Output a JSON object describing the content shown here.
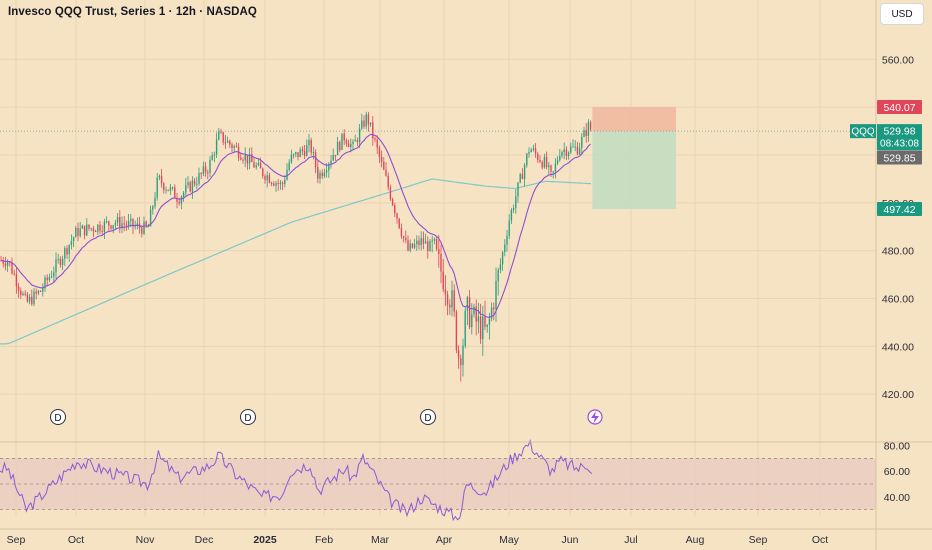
{
  "header": {
    "title": "Invesco QQQ Trust, Series 1 · 12h · NASDAQ",
    "currency": "USD"
  },
  "colors": {
    "background": "#f6e3c4",
    "candle_up": "#2e9e7e",
    "candle_down": "#e0455a",
    "ema_short": "#8e4fd0",
    "sma_long": "#7fc8c8",
    "rsi_line": "#8a5ad6",
    "rsi_band": "#e8c9c0",
    "target_box": "#c6dcc0",
    "stop_box": "#f1b9a0",
    "label_red": "#e0455a",
    "label_green": "#1a9980",
    "label_gray": "#6b6b6b"
  },
  "chart_data": {
    "type": "candlestick",
    "x_axis": {
      "ticks": [
        "Sep",
        "Oct",
        "Nov",
        "Dec",
        "2025",
        "Feb",
        "Mar",
        "Apr",
        "May",
        "Jun",
        "Jul",
        "Aug",
        "Sep",
        "Oct"
      ]
    },
    "price_axis": {
      "ticks": [
        "560.00",
        "540.00",
        "520.00",
        "500.00",
        "480.00",
        "460.00",
        "440.00",
        "420.00"
      ],
      "range": [
        400,
        572
      ]
    },
    "price_path": {
      "dates": [
        "Aug 28",
        "Sep 6",
        "Sep 13",
        "Oct 1",
        "Oct 20",
        "Nov 5",
        "Nov 10",
        "Nov 20",
        "Dec 5",
        "Dec 10",
        "Dec 18",
        "Dec 31",
        "Jan 10",
        "Jan 14",
        "Jan 24",
        "Jan 28",
        "Feb 10",
        "Feb 14",
        "Feb 19",
        "Feb 21",
        "Mar 4",
        "Mar 10",
        "Mar 13",
        "Mar 20",
        "Mar 26",
        "Apr 4",
        "Apr 7",
        "Apr 9",
        "Apr 11",
        "Apr 21",
        "May 2",
        "May 12",
        "May 20",
        "May 23",
        "May 27",
        "Jun 5",
        "Jun 10",
        "Jun 12"
      ],
      "close": [
        476,
        458,
        463,
        488,
        492,
        489,
        510,
        502,
        515,
        528,
        523,
        513,
        507,
        518,
        524,
        511,
        528,
        523,
        533,
        536,
        505,
        488,
        480,
        484,
        480,
        458,
        436,
        440,
        455,
        445,
        493,
        523,
        516,
        510,
        522,
        523,
        532,
        530
      ]
    },
    "indicators": {
      "short_ma": "purple line",
      "long_ma": "teal line",
      "sma_path": {
        "dates": [
          "Aug 28",
          "Nov 15",
          "Jan 15",
          "Mar 10",
          "Mar 25",
          "Apr 20",
          "May 5",
          "May 20",
          "Jun 12"
        ],
        "values": [
          441,
          470,
          492,
          506,
          510,
          507,
          506,
          509,
          508
        ]
      }
    },
    "position": {
      "entry": 529.98,
      "stop": 540.07,
      "target": 497.42
    },
    "price_labels": [
      {
        "text": "540.07",
        "color": "red"
      },
      {
        "text": "529.98",
        "sub": "08:43:08",
        "symbol": "QQQ",
        "color": "green"
      },
      {
        "text": "529.85",
        "color": "gray"
      },
      {
        "text": "497.42",
        "color": "green"
      }
    ],
    "dividend_markers": [
      "D",
      "D",
      "D"
    ],
    "rsi": {
      "ticks": [
        "80.00",
        "60.00",
        "40.00"
      ],
      "bands": [
        70,
        50,
        30
      ],
      "range": [
        25,
        86
      ],
      "path": {
        "dates": [
          "Aug 28",
          "Sep 6",
          "Sep 13",
          "Oct 1",
          "Oct 20",
          "Nov 5",
          "Nov 10",
          "Nov 20",
          "Dec 5",
          "Dec 10",
          "Dec 18",
          "Dec 31",
          "Jan 10",
          "Jan 14",
          "Jan 24",
          "Jan 28",
          "Feb 10",
          "Feb 14",
          "Feb 19",
          "Feb 21",
          "Mar 4",
          "Mar 10",
          "Mar 13",
          "Mar 20",
          "Mar 26",
          "Apr 4",
          "Apr 7",
          "Apr 9",
          "Apr 11",
          "Apr 21",
          "May 2",
          "May 12",
          "May 20",
          "May 23",
          "May 27",
          "Jun 5",
          "Jun 10",
          "Jun 12"
        ],
        "values": [
          62,
          30,
          40,
          68,
          58,
          50,
          72,
          55,
          64,
          72,
          58,
          40,
          42,
          60,
          66,
          45,
          62,
          54,
          70,
          66,
          38,
          30,
          28,
          40,
          34,
          26,
          22,
          34,
          50,
          44,
          68,
          82,
          66,
          60,
          68,
          62,
          66,
          60
        ]
      }
    }
  }
}
